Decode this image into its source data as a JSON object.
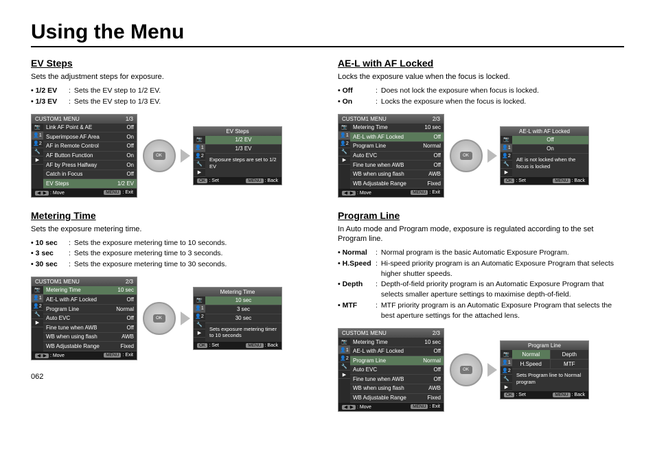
{
  "page_title": "Using the Menu",
  "page_number": "062",
  "colors": {
    "panel_bg": "#333333",
    "highlight": "#5a7a5a",
    "border": "#888888"
  },
  "ev_steps": {
    "title": "EV Steps",
    "desc": "Sets the adjustment steps for exposure.",
    "options": [
      {
        "label": "• 1/2 EV",
        "text": "Sets the EV step to 1/2 EV."
      },
      {
        "label": "• 1/3 EV",
        "text": "Sets the EV step to 1/3 EV."
      }
    ],
    "menu_header": "CUSTOM1 MENU",
    "menu_page": "1/3",
    "menu_rows": [
      {
        "name": "Link AF Point & AE",
        "val": "Off"
      },
      {
        "name": "Superimpose AF Area",
        "val": "On"
      },
      {
        "name": "AF in Remote Control",
        "val": "Off"
      },
      {
        "name": "AF Button Function",
        "val": "On"
      },
      {
        "name": "AF by Press Halfway",
        "val": "On"
      },
      {
        "name": "Catch in Focus",
        "val": "Off"
      },
      {
        "name": "EV Steps",
        "val": "1/2 EV",
        "hl": true
      }
    ],
    "ftr_move": ": Move",
    "ftr_exit": ": Exit",
    "info_header": "EV Steps",
    "info_choices": [
      "1/2 EV",
      "1/3 EV"
    ],
    "info_text": "Exposure steps are set to 1/2 EV",
    "ftr_set": ": Set",
    "ftr_back": ": Back"
  },
  "metering": {
    "title": "Metering Time",
    "desc": "Sets the exposure metering time.",
    "options": [
      {
        "label": "• 10 sec",
        "text": "Sets the exposure metering time to 10 seconds."
      },
      {
        "label": "• 3 sec",
        "text": "Sets the exposure metering time to 3 seconds."
      },
      {
        "label": "• 30 sec",
        "text": "Sets the exposure metering time to 30 seconds."
      }
    ],
    "menu_header": "CUSTOM1 MENU",
    "menu_page": "2/3",
    "menu_rows": [
      {
        "name": "Metering Time",
        "val": "10 sec",
        "hl": true
      },
      {
        "name": "AE-L with AF Locked",
        "val": "Off"
      },
      {
        "name": "Program Line",
        "val": "Normal"
      },
      {
        "name": "Auto EVC",
        "val": "Off"
      },
      {
        "name": "Fine tune when AWB",
        "val": "Off"
      },
      {
        "name": "WB when using flash",
        "val": "AWB"
      },
      {
        "name": "WB Adjustable Range",
        "val": "Fixed"
      }
    ],
    "info_header": "Metering Time",
    "info_choices": [
      "10 sec",
      "3 sec",
      "30 sec"
    ],
    "info_text": "Sets exposure metering timer to 10 seconds"
  },
  "ael": {
    "title": "AE-L with AF Locked",
    "desc": "Locks the exposure value when the focus is locked.",
    "options": [
      {
        "label": "• Off",
        "text": "Does not lock the exposure when focus is locked."
      },
      {
        "label": "• On",
        "text": "Locks the exposure when the focus is locked."
      }
    ],
    "menu_header": "CUSTOM1 MENU",
    "menu_page": "2/3",
    "menu_rows": [
      {
        "name": "Metering Time",
        "val": "10 sec"
      },
      {
        "name": "AE-L with AF Locked",
        "val": "Off",
        "hl": true
      },
      {
        "name": "Program Line",
        "val": "Normal"
      },
      {
        "name": "Auto EVC",
        "val": "Off"
      },
      {
        "name": "Fine tune when AWB",
        "val": "Off"
      },
      {
        "name": "WB when using flash",
        "val": "AWB"
      },
      {
        "name": "WB Adjustable Range",
        "val": "Fixed"
      }
    ],
    "info_header": "AE-L with AF Locked",
    "info_choices": [
      "Off",
      "On"
    ],
    "info_text": "AE is not locked when the focus is locked"
  },
  "program": {
    "title": "Program Line",
    "desc": "In Auto mode and Program mode, exposure is regulated according to the set Program line.",
    "options": [
      {
        "label": "• Normal",
        "text": "Normal program is the basic Automatic Exposure Program."
      },
      {
        "label": "• H.Speed",
        "text": "Hi-speed priority program is an Automatic Exposure Program that selects higher shutter speeds."
      },
      {
        "label": "• Depth",
        "text": "Depth-of-field priority program is an Automatic Exposure Program that selects smaller aperture settings to maximise depth-of-field."
      },
      {
        "label": "• MTF",
        "text": "MTF priority program is an Automatic Exposure Program that selects the best aperture settings for the attached lens."
      }
    ],
    "menu_header": "CUSTOM1 MENU",
    "menu_page": "2/3",
    "menu_rows": [
      {
        "name": "Metering Time",
        "val": "10 sec"
      },
      {
        "name": "AE-L with AF Locked",
        "val": "Off"
      },
      {
        "name": "Program Line",
        "val": "Normal",
        "hl": true
      },
      {
        "name": "Auto EVC",
        "val": "Off"
      },
      {
        "name": "Fine tune when AWB",
        "val": "Off"
      },
      {
        "name": "WB when using flash",
        "val": "AWB"
      },
      {
        "name": "WB Adjustable Range",
        "val": "Fixed"
      }
    ],
    "info_header": "Program Line",
    "info_grid": [
      "Normal",
      "Depth",
      "H.Speed",
      "MTF"
    ],
    "info_text": "Sets Program line to Normal program"
  },
  "side_icons": [
    "📷",
    "👤1",
    "👤2",
    "🔧",
    "▶"
  ],
  "footer_labels": {
    "move_btn": "◀○▶",
    "menu_btn": "MENU",
    "ok_btn": "OK"
  }
}
